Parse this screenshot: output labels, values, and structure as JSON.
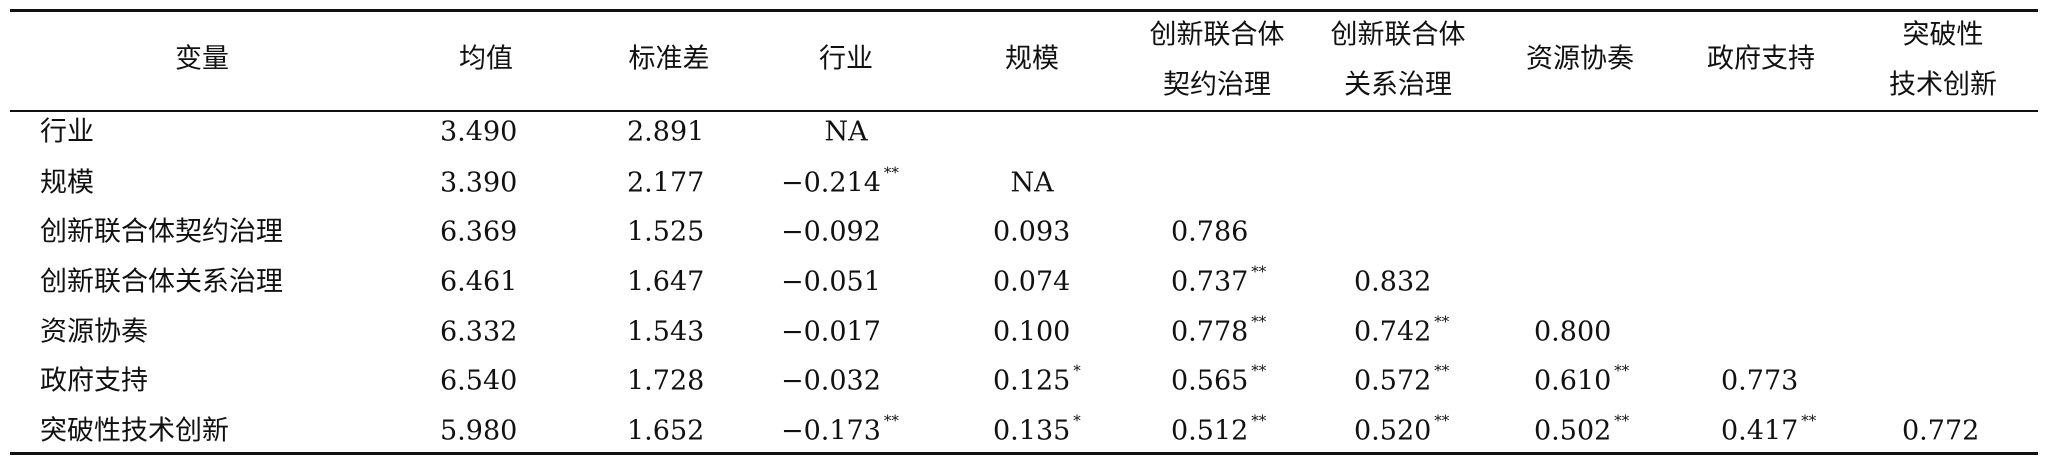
{
  "table": {
    "header": [
      [
        "变量"
      ],
      [
        "均值"
      ],
      [
        "标准差"
      ],
      [
        "行业"
      ],
      [
        "规模"
      ],
      [
        "创新联合体",
        "契约治理"
      ],
      [
        "创新联合体",
        "关系治理"
      ],
      [
        "资源协奏"
      ],
      [
        "政府支持"
      ],
      [
        "突破性",
        "技术创新"
      ]
    ],
    "rows": [
      {
        "label": "行业",
        "cells": [
          {
            "text": "3.490"
          },
          {
            "text": "2.891"
          },
          {
            "text": "NA"
          }
        ]
      },
      {
        "label": "规模",
        "cells": [
          {
            "text": "3.390"
          },
          {
            "text": "2.177"
          },
          {
            "text": "−0.214",
            "sig": "**"
          },
          {
            "text": "NA"
          }
        ]
      },
      {
        "label": "创新联合体契约治理",
        "cells": [
          {
            "text": "6.369"
          },
          {
            "text": "1.525"
          },
          {
            "text": "−0.092"
          },
          {
            "text": "0.093"
          },
          {
            "text": "0.786"
          }
        ]
      },
      {
        "label": "创新联合体关系治理",
        "cells": [
          {
            "text": "6.461"
          },
          {
            "text": "1.647"
          },
          {
            "text": "−0.051"
          },
          {
            "text": "0.074"
          },
          {
            "text": "0.737",
            "sig": "**"
          },
          {
            "text": "0.832"
          }
        ]
      },
      {
        "label": "资源协奏",
        "cells": [
          {
            "text": "6.332"
          },
          {
            "text": "1.543"
          },
          {
            "text": "−0.017"
          },
          {
            "text": "0.100"
          },
          {
            "text": "0.778",
            "sig": "**"
          },
          {
            "text": "0.742",
            "sig": "**"
          },
          {
            "text": "0.800"
          }
        ]
      },
      {
        "label": "政府支持",
        "cells": [
          {
            "text": "6.540"
          },
          {
            "text": "1.728"
          },
          {
            "text": "−0.032"
          },
          {
            "text": "0.125",
            "sig": "*"
          },
          {
            "text": "0.565",
            "sig": "**"
          },
          {
            "text": "0.572",
            "sig": "**"
          },
          {
            "text": "0.610",
            "sig": "**"
          },
          {
            "text": "0.773"
          }
        ]
      },
      {
        "label": "突破性技术创新",
        "cells": [
          {
            "text": "5.980"
          },
          {
            "text": "1.652"
          },
          {
            "text": "−0.173",
            "sig": "**"
          },
          {
            "text": "0.135",
            "sig": "*"
          },
          {
            "text": "0.512",
            "sig": "**"
          },
          {
            "text": "0.520",
            "sig": "**"
          },
          {
            "text": "0.502",
            "sig": "**"
          },
          {
            "text": "0.417",
            "sig": "**"
          },
          {
            "text": "0.772"
          }
        ]
      }
    ]
  }
}
